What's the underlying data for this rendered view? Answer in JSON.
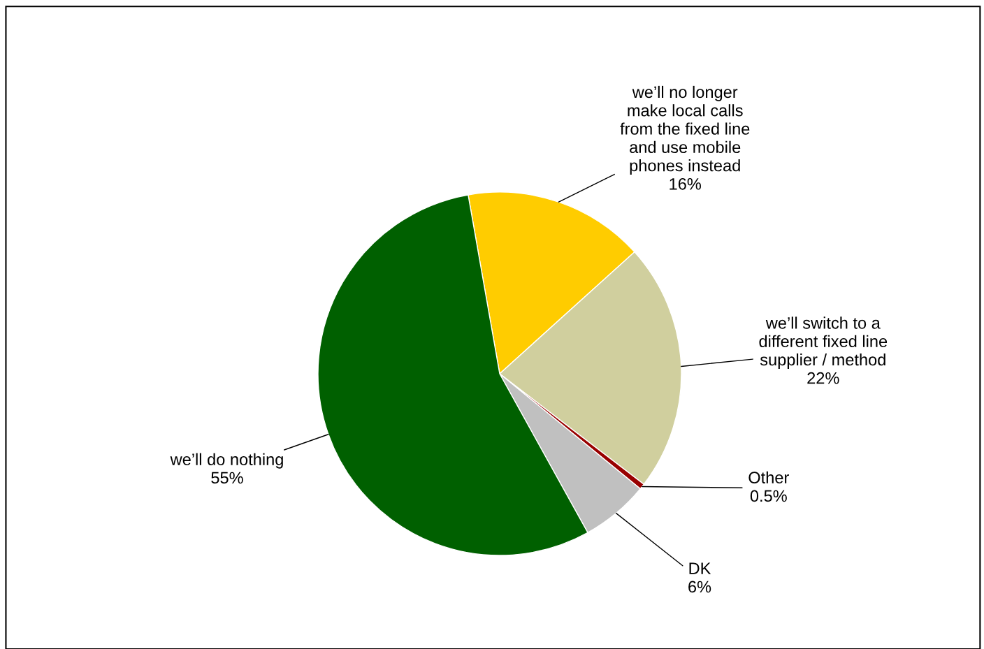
{
  "chart_data": {
    "type": "pie",
    "categories": [
      "we’ll no longer\nmake local calls\nfrom the fixed line\nand use mobile\nphones instead",
      "we’ll switch to a\ndifferent fixed line\nsupplier / method",
      "Other",
      "DK",
      "we’ll do nothing"
    ],
    "values": [
      16,
      22,
      0.5,
      6,
      55
    ],
    "value_labels": [
      "16%",
      "22%",
      "0.5%",
      "6%",
      "55%"
    ],
    "colors": [
      "#ffcc00",
      "#d0cf9e",
      "#990000",
      "#c0c0c0",
      "#006000"
    ],
    "legend": false
  }
}
